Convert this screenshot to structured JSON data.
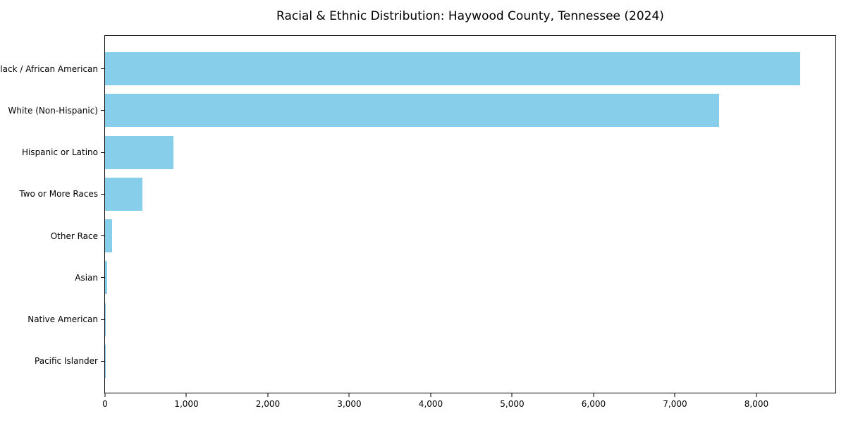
{
  "chart_data": {
    "type": "bar",
    "orientation": "horizontal",
    "title": "Racial & Ethnic Distribution: Haywood County, Tennessee (2024)",
    "categories": [
      "Black / African American",
      "White (Non-Hispanic)",
      "Hispanic or Latino",
      "Two or More Races",
      "Other Race",
      "Asian",
      "Native American",
      "Pacific Islander"
    ],
    "values": [
      8540,
      7540,
      840,
      455,
      90,
      25,
      10,
      2
    ],
    "xlabel": "",
    "ylabel": "",
    "xlim": [
      0,
      8970
    ],
    "xticks": [
      0,
      1000,
      2000,
      3000,
      4000,
      5000,
      6000,
      7000,
      8000
    ],
    "xtick_labels": [
      "0",
      "1,000",
      "2,000",
      "3,000",
      "4,000",
      "5,000",
      "6,000",
      "7,000",
      "8,000"
    ],
    "bar_color": "#87CEEB",
    "spine_color": "#000000",
    "grid": false,
    "legend": false
  }
}
